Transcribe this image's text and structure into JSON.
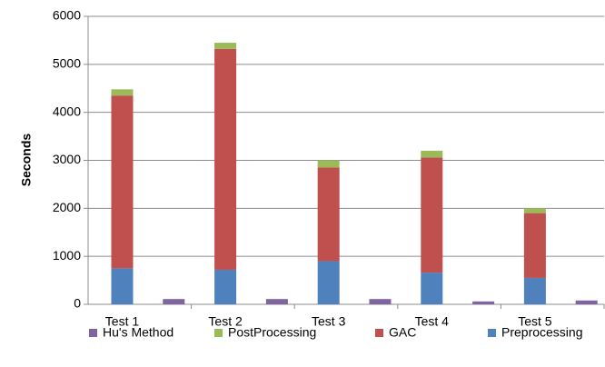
{
  "chart_data": {
    "type": "bar",
    "stacked": true,
    "ylabel": "Seconds",
    "categories": [
      "Test 1",
      "Test 2",
      "Test 3",
      "Test 4",
      "Test 5"
    ],
    "series": [
      {
        "name": "Hu's Method",
        "color": "#8064a2",
        "stack": false,
        "values": [
          110,
          110,
          110,
          60,
          80
        ]
      },
      {
        "name": "PostProcessing",
        "color": "#9bbb59",
        "stack": true,
        "values": [
          130,
          130,
          150,
          140,
          100
        ]
      },
      {
        "name": "GAC",
        "color": "#c0504d",
        "stack": true,
        "values": [
          3600,
          4600,
          1950,
          2400,
          1350
        ]
      },
      {
        "name": "Preprocessing",
        "color": "#4f81bd",
        "stack": true,
        "values": [
          750,
          720,
          900,
          660,
          550
        ]
      }
    ],
    "ylim": [
      0,
      6000
    ],
    "yticks": [
      0,
      1000,
      2000,
      3000,
      4000,
      5000,
      6000
    ],
    "grid": true,
    "legend": "bottom"
  }
}
